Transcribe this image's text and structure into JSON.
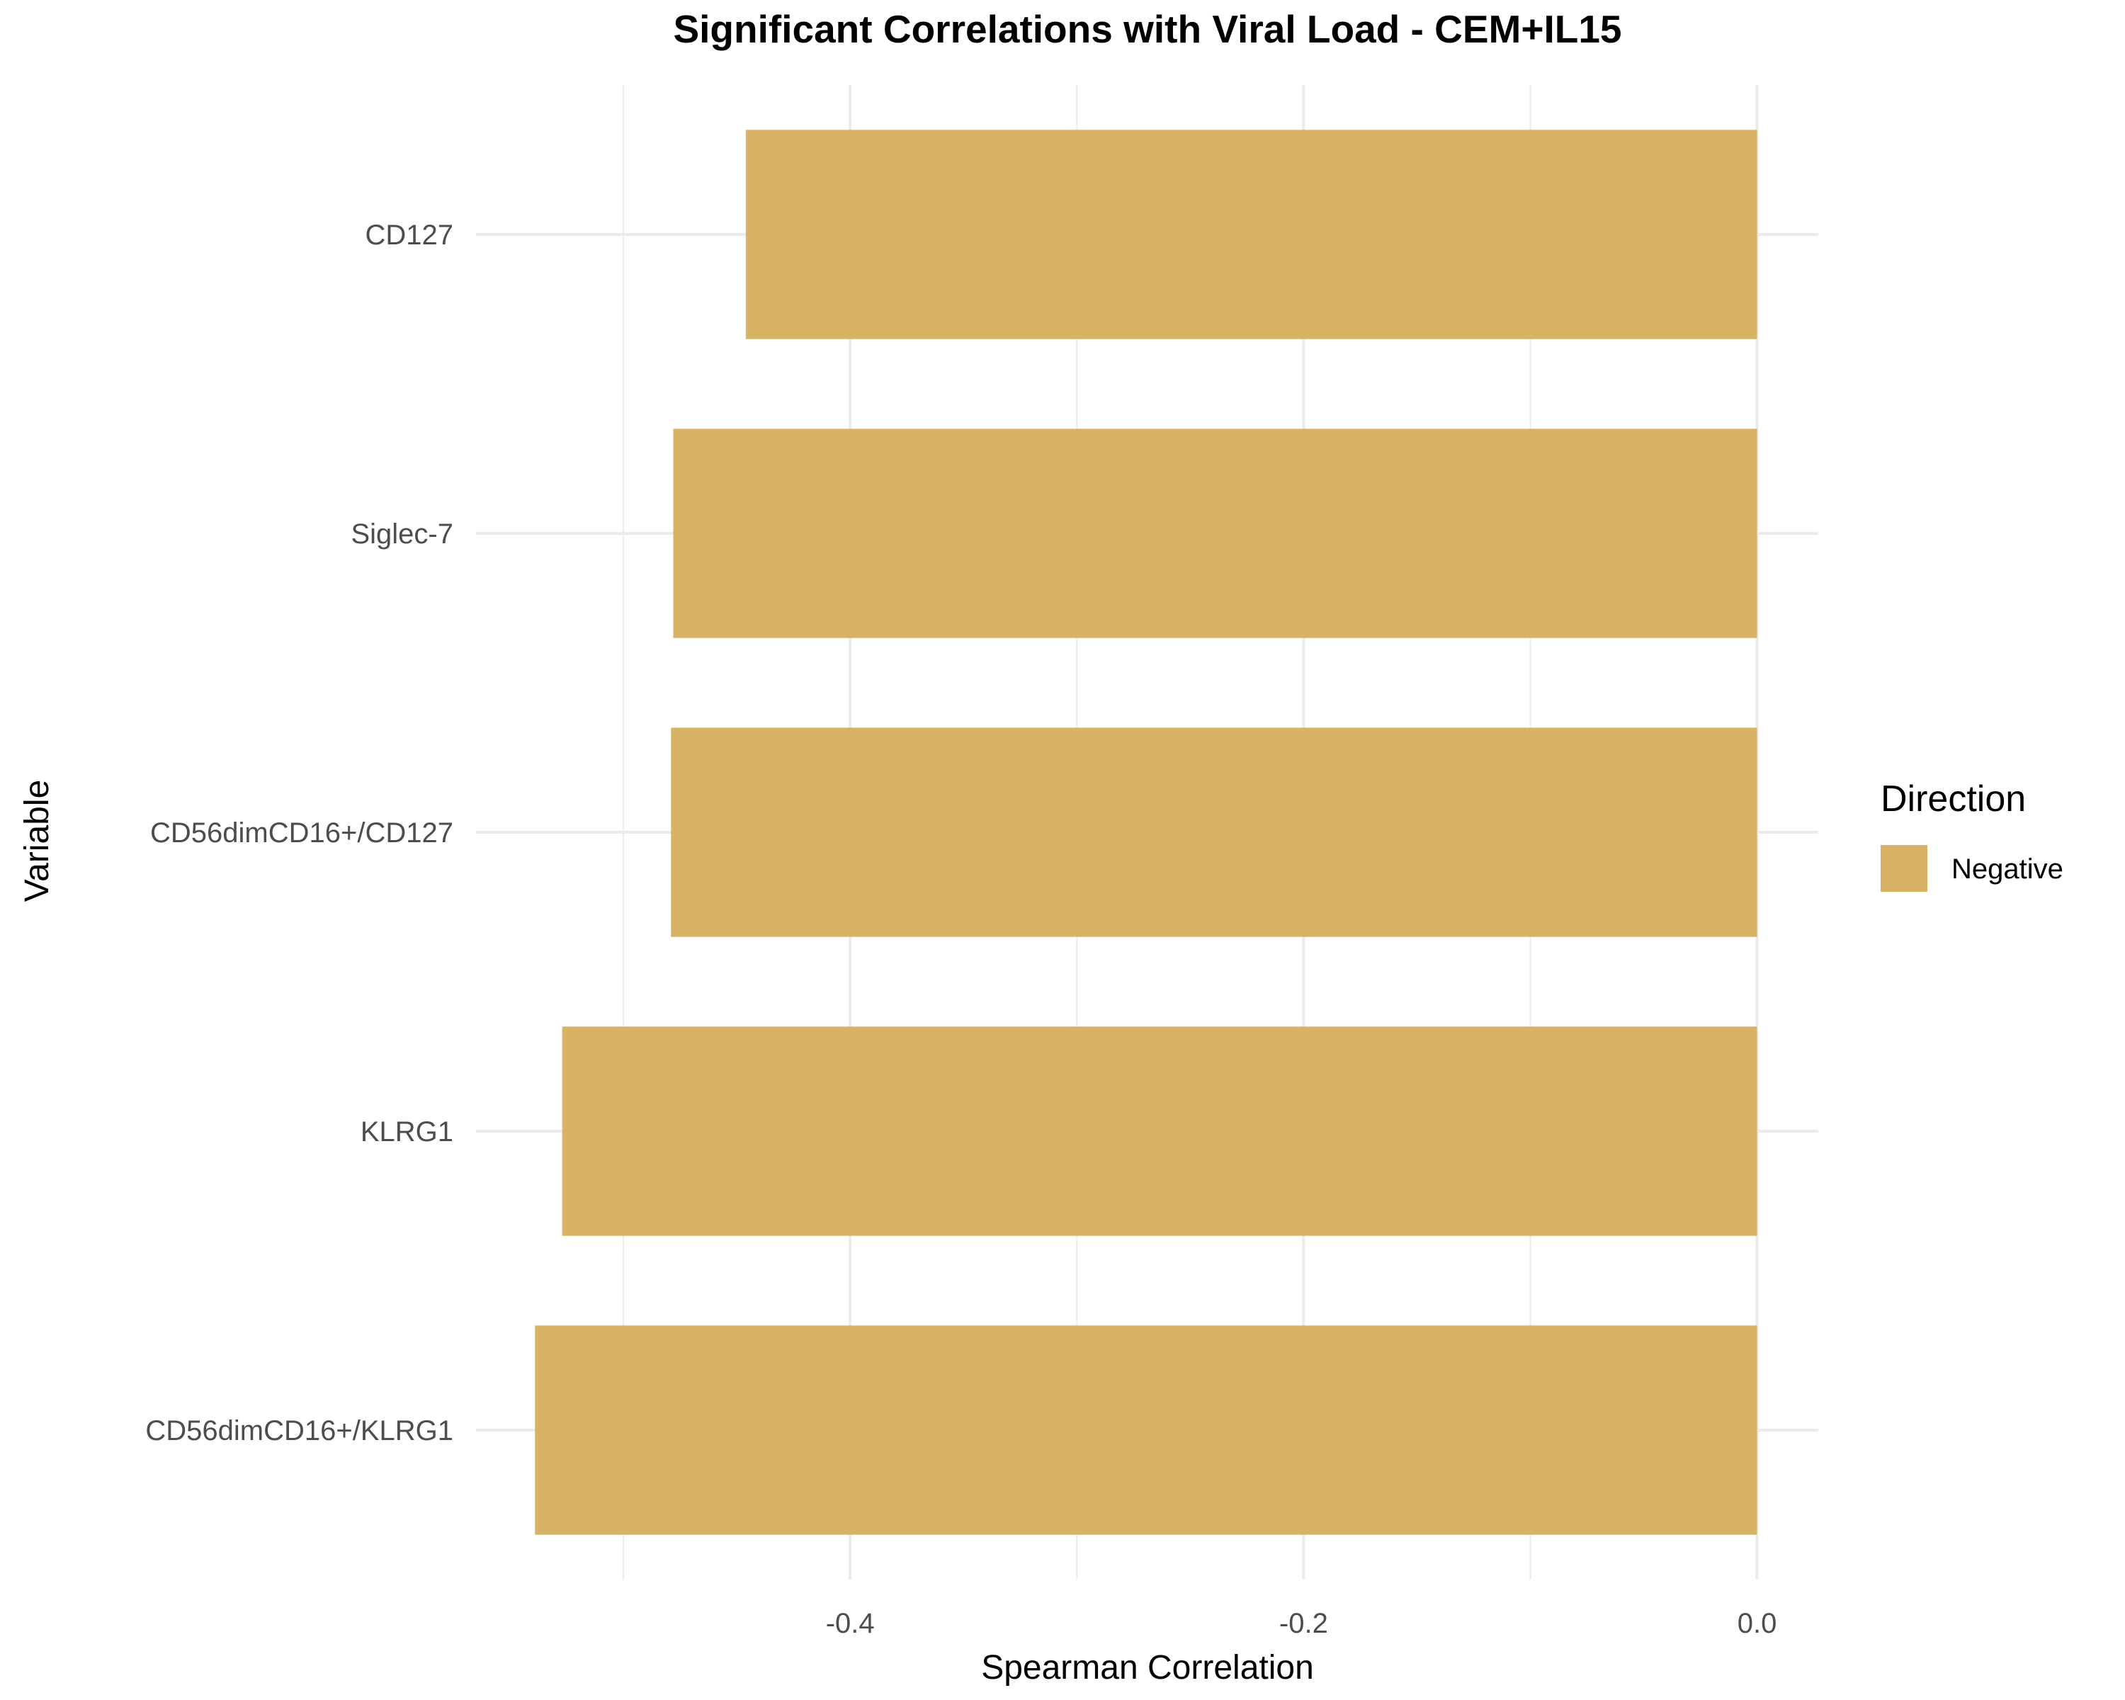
{
  "chart_data": {
    "type": "bar",
    "orientation": "horizontal",
    "title": "Significant Correlations with Viral Load - CEM+IL15",
    "xlabel": "Spearman Correlation",
    "ylabel": "Variable",
    "categories": [
      "CD127",
      "Siglec-7",
      "CD56dimCD16+/CD127",
      "KLRG1",
      "CD56dimCD16+/KLRG1"
    ],
    "values": [
      -0.446,
      -0.478,
      -0.479,
      -0.527,
      -0.539
    ],
    "series": [
      {
        "name": "Negative",
        "color": "#d8b365"
      }
    ],
    "xlim": [
      -0.565,
      0.027
    ],
    "xticks": [
      -0.4,
      -0.2,
      0.0
    ],
    "xtick_labels": [
      "-0.4",
      "-0.2",
      "0.0"
    ],
    "grid": true,
    "legend": {
      "title": "Direction",
      "position": "right",
      "entries": [
        "Negative"
      ]
    }
  }
}
